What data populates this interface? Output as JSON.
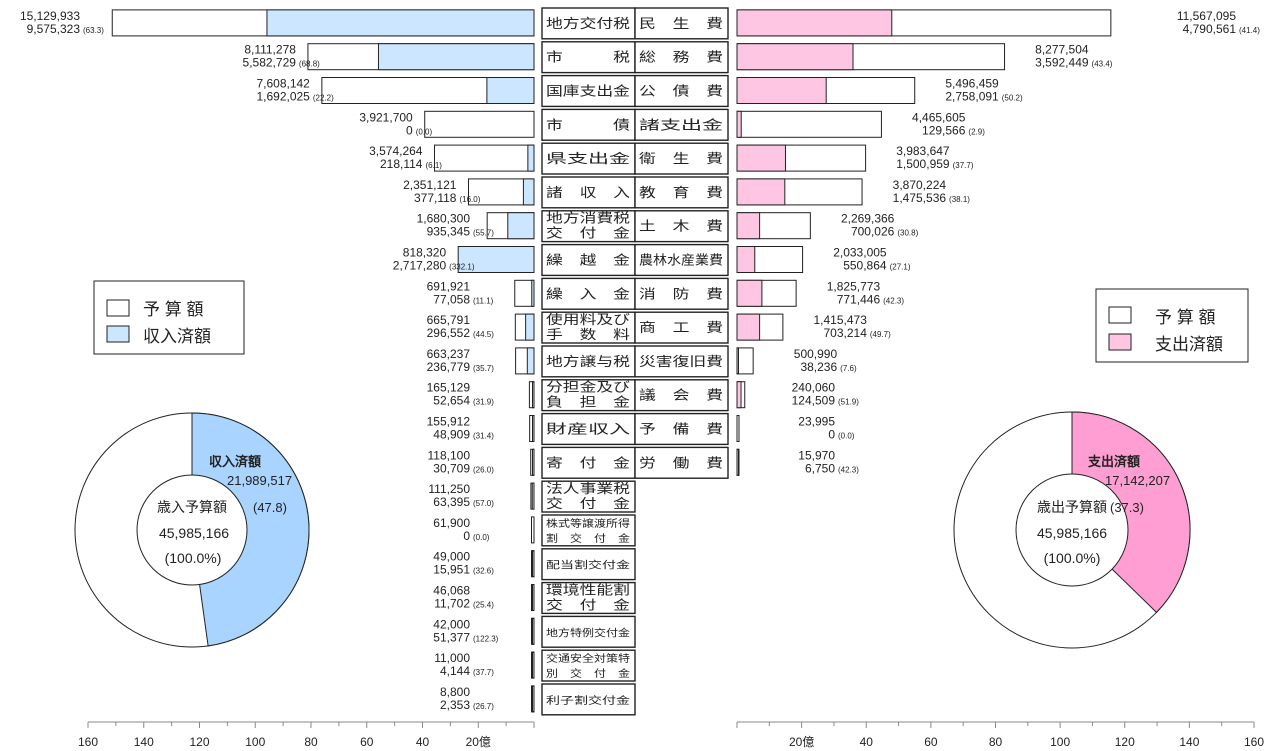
{
  "colors": {
    "revenue_fill": "#cce6ff",
    "expense_fill": "#ffc6e3",
    "revenue_pie": "#a9d4ff",
    "expense_pie": "#ff9ed2",
    "budget_fill": "#ffffff",
    "stroke": "#222222"
  },
  "legends": {
    "revenue": {
      "budget": "予 算 額",
      "settled": "収入済額"
    },
    "expense": {
      "budget": "予 算 額",
      "settled": "支出済額"
    }
  },
  "pies": {
    "revenue": {
      "settled_label": "収入済額",
      "settled_value": "21,989,517",
      "settled_pct": "(47.8)",
      "center_title": "歳入予算額",
      "center_value": "45,985,166",
      "center_pct": "(100.0%)",
      "settled_share": 0.478
    },
    "expense": {
      "settled_label": "支出済額",
      "settled_value": "17,142,207",
      "settled_pct": "(37.3)",
      "center_title": "歳出予算額",
      "center_value": "45,985,166",
      "center_pct": "(100.0%)",
      "settled_share": 0.373
    }
  },
  "chart_data": {
    "type": "bar",
    "unit_label": "20億",
    "x_ticks": [
      "160",
      "140",
      "120",
      "100",
      "80",
      "60",
      "40",
      "20億"
    ],
    "x_ticks_right": [
      "20億",
      "40",
      "60",
      "80",
      "100",
      "120",
      "140",
      "160"
    ],
    "axis_max": 160,
    "revenue": [
      {
        "name": [
          "地方交付税"
        ],
        "budget": "15,129,933",
        "settled": "9,575,323",
        "pct": "(63.3)",
        "b": 151.3,
        "s": 95.8
      },
      {
        "name": [
          "市　　　税"
        ],
        "budget": "8,111,278",
        "settled": "5,582,729",
        "pct": "(68.8)",
        "b": 81.1,
        "s": 55.8
      },
      {
        "name": [
          "国庫支出金"
        ],
        "budget": "7,608,142",
        "settled": "1,692,025",
        "pct": "(22.2)",
        "b": 76.1,
        "s": 16.9
      },
      {
        "name": [
          "市　　　債"
        ],
        "budget": "3,921,700",
        "settled": "0",
        "pct": "(0.0)",
        "b": 39.2,
        "s": 0
      },
      {
        "name": [
          "県支出金"
        ],
        "budget": "3,574,264",
        "settled": "218,114",
        "pct": "(6.1)",
        "b": 35.7,
        "s": 2.2
      },
      {
        "name": [
          "諸　収　入"
        ],
        "budget": "2,351,121",
        "settled": "377,118",
        "pct": "(16.0)",
        "b": 23.5,
        "s": 3.8
      },
      {
        "name": [
          "地方消費税",
          "交　付　金"
        ],
        "budget": "1,680,300",
        "settled": "935,345",
        "pct": "(55.7)",
        "b": 16.8,
        "s": 9.4
      },
      {
        "name": [
          "繰　越　金"
        ],
        "budget": "818,320",
        "settled": "2,717,280",
        "pct": "(332.1)",
        "b": 8.2,
        "s": 27.2
      },
      {
        "name": [
          "繰　入　金"
        ],
        "budget": "691,921",
        "settled": "77,058",
        "pct": "(11.1)",
        "b": 6.9,
        "s": 0.8
      },
      {
        "name": [
          "使用料及び",
          "手　数　料"
        ],
        "budget": "665,791",
        "settled": "296,552",
        "pct": "(44.5)",
        "b": 6.7,
        "s": 3.0
      },
      {
        "name": [
          "地方譲与税"
        ],
        "budget": "663,237",
        "settled": "236,779",
        "pct": "(35.7)",
        "b": 6.6,
        "s": 2.4
      },
      {
        "name": [
          "分担金及び",
          "負　担　金"
        ],
        "budget": "165,129",
        "settled": "52,654",
        "pct": "(31.9)",
        "b": 1.65,
        "s": 0.53
      },
      {
        "name": [
          "財産収入"
        ],
        "budget": "155,912",
        "settled": "48,909",
        "pct": "(31.4)",
        "b": 1.56,
        "s": 0.49
      },
      {
        "name": [
          "寄　付　金"
        ],
        "budget": "118,100",
        "settled": "30,709",
        "pct": "(26.0)",
        "b": 1.18,
        "s": 0.31
      },
      {
        "name": [
          "法人事業税",
          "交　付　金"
        ],
        "budget": "111,250",
        "settled": "63,395",
        "pct": "(57.0)",
        "b": 1.11,
        "s": 0.63
      },
      {
        "name": [
          "株式等譲渡所得",
          "割　交　付　金"
        ],
        "budget": "61,900",
        "settled": "0",
        "pct": "(0.0)",
        "b": 0.62,
        "s": 0
      },
      {
        "name": [
          "配当割交付金"
        ],
        "budget": "49,000",
        "settled": "15,951",
        "pct": "(32.6)",
        "b": 0.49,
        "s": 0.16
      },
      {
        "name": [
          "環境性能割",
          "交　付　金"
        ],
        "budget": "46,068",
        "settled": "11,702",
        "pct": "(25.4)",
        "b": 0.46,
        "s": 0.12
      },
      {
        "name": [
          "地方特例交付金"
        ],
        "budget": "42,000",
        "settled": "51,377",
        "pct": "(122.3)",
        "b": 0.42,
        "s": 0.51
      },
      {
        "name": [
          "交通安全対策特",
          "別　交　付　金"
        ],
        "budget": "11,000",
        "settled": "4,144",
        "pct": "(37.7)",
        "b": 0.11,
        "s": 0.04
      },
      {
        "name": [
          "利子割交付金"
        ],
        "budget": "8,800",
        "settled": "2,353",
        "pct": "(26.7)",
        "b": 0.09,
        "s": 0.02
      }
    ],
    "expense": [
      {
        "name": "民　生　費",
        "budget": "11,567,095",
        "settled": "4,790,561",
        "pct": "(41.4)",
        "b": 115.7,
        "s": 47.9
      },
      {
        "name": "総　務　費",
        "budget": "8,277,504",
        "settled": "3,592,449",
        "pct": "(43.4)",
        "b": 82.8,
        "s": 35.9
      },
      {
        "name": "公　債　費",
        "budget": "5,496,459",
        "settled": "2,758,091",
        "pct": "(50.2)",
        "b": 55.0,
        "s": 27.6
      },
      {
        "name": "諸支出金",
        "budget": "4,465,605",
        "settled": "129,566",
        "pct": "(2.9)",
        "b": 44.7,
        "s": 1.3
      },
      {
        "name": "衛　生　費",
        "budget": "3,983,647",
        "settled": "1,500,959",
        "pct": "(37.7)",
        "b": 39.8,
        "s": 15.0
      },
      {
        "name": "教　育　費",
        "budget": "3,870,224",
        "settled": "1,475,536",
        "pct": "(38.1)",
        "b": 38.7,
        "s": 14.8
      },
      {
        "name": "土　木　費",
        "budget": "2,269,366",
        "settled": "700,026",
        "pct": "(30.8)",
        "b": 22.7,
        "s": 7.0
      },
      {
        "name": "農林水産業費",
        "budget": "2,033,005",
        "settled": "550,864",
        "pct": "(27.1)",
        "b": 20.3,
        "s": 5.5
      },
      {
        "name": "消　防　費",
        "budget": "1,825,773",
        "settled": "771,446",
        "pct": "(42.3)",
        "b": 18.3,
        "s": 7.7
      },
      {
        "name": "商　工　費",
        "budget": "1,415,473",
        "settled": "703,214",
        "pct": "(49.7)",
        "b": 14.2,
        "s": 7.0
      },
      {
        "name": "災害復旧費",
        "budget": "500,990",
        "settled": "38,236",
        "pct": "(7.6)",
        "b": 5.0,
        "s": 0.4
      },
      {
        "name": "議　会　費",
        "budget": "240,060",
        "settled": "124,509",
        "pct": "(51.9)",
        "b": 2.4,
        "s": 1.25
      },
      {
        "name": "予　備　費",
        "budget": "23,995",
        "settled": "0",
        "pct": "(0.0)",
        "b": 0.24,
        "s": 0
      },
      {
        "name": "労　働　費",
        "budget": "15,970",
        "settled": "6,750",
        "pct": "(42.3)",
        "b": 0.16,
        "s": 0.07
      }
    ]
  }
}
